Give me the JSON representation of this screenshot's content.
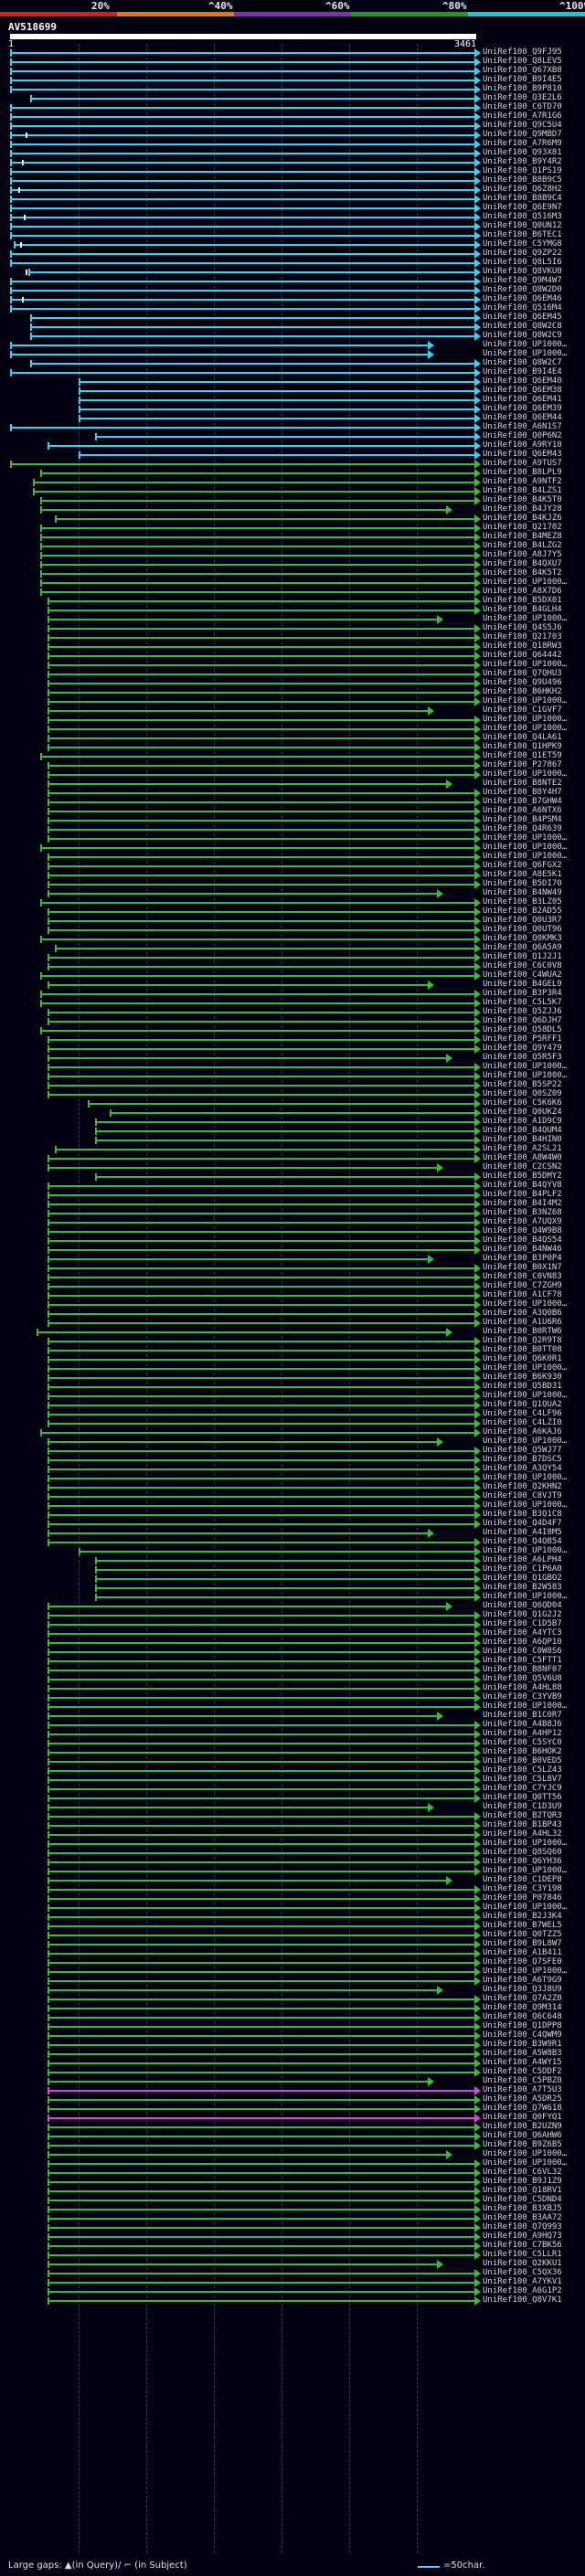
{
  "scale": {
    "labels": [
      "20%",
      "^40%",
      "^60%",
      "^80%",
      "^100%"
    ],
    "colors": [
      "#dd1a22",
      "#e07810",
      "#8030b0",
      "#18a018",
      "#18c8d8"
    ]
  },
  "query": {
    "id": "AV518699",
    "start": "1",
    "end": "3461"
  },
  "colors": {
    "blast_cyan": "#3ad0f0",
    "blast_green": "#3cb83c",
    "blast_magenta": "#e040e0"
  },
  "legend": {
    "gap_text": "Large gaps: ▲(in Query)/ ⌐ (in Subject)",
    "scale_text": "=50char."
  },
  "hits": [
    "UniRef100_Q9FJ95",
    "UniRef100_Q8LEV5",
    "UniRef100_Q67XB8",
    "UniRef100_B9I4E5",
    "UniRef100_B9P810",
    "UniRef100_Q3E2L6",
    "UniRef100_C6TD70",
    "UniRef100_A7R1G6",
    "UniRef100_Q9C5U4",
    "UniRef100_Q9MBD7",
    "UniRef100_A7R6M9",
    "UniRef100_Q93X81",
    "UniRef100_B9Y4R2",
    "UniRef100_Q1PS19",
    "UniRef100_B8B9C5",
    "UniRef100_Q6Z8H2",
    "UniRef100_B8B9C4",
    "UniRef100_Q6E9N7",
    "UniRef100_Q516M3",
    "UniRef100_Q0UN12",
    "UniRef100_B6TEC1",
    "UniRef100_C5YMG8",
    "UniRef100_Q9ZP22",
    "UniRef100_Q8L5I6",
    "UniRef100_Q8VKU0",
    "UniRef100_Q9M4W7",
    "UniRef100_Q8W2D0",
    "UniRef100_Q6EM46",
    "UniRef100_Q516M4",
    "UniRef100_Q6EM45",
    "UniRef100_Q8W2C8",
    "UniRef100_Q8W2C9",
    "UniRef100_UP1000…",
    "UniRef100_UP1000…",
    "UniRef100_Q8W2C7",
    "UniRef100_B9I4E4",
    "UniRef100_Q6EM40",
    "UniRef100_Q6EM38",
    "UniRef100_Q6EM41",
    "UniRef100_Q6EM39",
    "UniRef100_Q6EM44",
    "UniRef100_A6N1S7",
    "UniRef100_Q0P6N2",
    "UniRef100_A9RY10",
    "UniRef100_Q6EM43",
    "UniRef100_A9TUS7",
    "UniRef100_B8LPL9",
    "UniRef100_A9NTF2",
    "UniRef100_B4LZS1",
    "UniRef100_B4K5T0",
    "UniRef100_B4JY28",
    "UniRef100_B4KJZ6",
    "UniRef100_Q21702",
    "UniRef100_B4MEZ8",
    "UniRef100_B4LZG2",
    "UniRef100_A8J7Y5",
    "UniRef100_B4QXU7",
    "UniRef100_B4K5T2",
    "UniRef100_UP1000…",
    "UniRef100_A8X7D6",
    "UniRef100_B5DX01",
    "UniRef100_B4GLH4",
    "UniRef100_UP1000…",
    "UniRef100_Q4S5J6",
    "UniRef100_Q21703",
    "UniRef100_Q18RW3",
    "UniRef100_Q64442",
    "UniRef100_UP1000…",
    "UniRef100_Q7QHU3",
    "UniRef100_Q9U496",
    "UniRef100_B6HKH2",
    "UniRef100_UP1000…",
    "UniRef100_C1GVF7",
    "UniRef100_UP1000…",
    "UniRef100_UP1000…",
    "UniRef100_Q4LA61",
    "UniRef100_Q1HPK9",
    "UniRef100_Q1ET59",
    "UniRef100_P27867",
    "UniRef100_UP1000…",
    "UniRef100_B8NTE2",
    "UniRef100_B8Y4H7",
    "UniRef100_B7GHW4",
    "UniRef100_A6NTX6",
    "UniRef100_B4PSM4",
    "UniRef100_Q4R639",
    "UniRef100_UP1000…",
    "UniRef100_UP1000…",
    "UniRef100_UP1000…",
    "UniRef100_Q6FGX2",
    "UniRef100_A8E5K1",
    "UniRef100_B5DI70",
    "UniRef100_B4NW49",
    "UniRef100_B3LZ05",
    "UniRef100_B2AD55",
    "UniRef100_Q0U3R7",
    "UniRef100_Q0UT96",
    "UniRef100_Q0KMK3",
    "UniRef100_Q6A5A9",
    "UniRef100_Q1J2J1",
    "UniRef100_C6C0V8",
    "UniRef100_C4WUA2",
    "UniRef100_B4GEL9",
    "UniRef100_B3P3R4",
    "UniRef100_C5L5K7",
    "UniRef100_Q5ZJJ6",
    "UniRef100_Q6DJH7",
    "UniRef100_Q58DL5",
    "UniRef100_P5RFF1",
    "UniRef100_Q9Y479",
    "UniRef100_Q5R5F3",
    "UniRef100_UP1000…",
    "UniRef100_UP1000…",
    "UniRef100_B5SP22",
    "UniRef100_Q0SZ09",
    "UniRef100_C5K6K6",
    "UniRef100_Q0UKZ4",
    "UniRef100_A1D9C9",
    "UniRef100_B4QUM4",
    "UniRef100_B4HIN0",
    "UniRef100_A2SL21",
    "UniRef100_A8W4W0",
    "UniRef100_C2CSN2",
    "UniRef100_B5DMY2",
    "UniRef100_B4QYV8",
    "UniRef100_B4PLF2",
    "UniRef100_B4I4M2",
    "UniRef100_B3NZ68",
    "UniRef100_A7UQX9",
    "UniRef100_Q4W9B8",
    "UniRef100_B4QS54",
    "UniRef100_B4NW46",
    "UniRef100_B3P0P4",
    "UniRef100_B0X1N7",
    "UniRef100_C0VN83",
    "UniRef100_C7ZGH9",
    "UniRef100_A1CF78",
    "UniRef100_UP1000…",
    "UniRef100_A3Q0B6",
    "UniRef100_A1U6R6",
    "UniRef100_B0RTW6",
    "UniRef100_Q2R9T8",
    "UniRef100_B0TT08",
    "UniRef100_Q6K0R1",
    "UniRef100_UP1000…",
    "UniRef100_B6K930",
    "UniRef100_Q5BD31",
    "UniRef100_UP1000…",
    "UniRef100_Q1QUA2",
    "UniRef100_C4LF96",
    "UniRef100_C4LZI0",
    "UniRef100_A6KAJ6",
    "UniRef100_UP1000…",
    "UniRef100_Q5WJ77",
    "UniRef100_B7DSC5",
    "UniRef100_A3QY54",
    "UniRef100_UP1000…",
    "UniRef100_Q2KHN2",
    "UniRef100_C8VJT9",
    "UniRef100_UP1000…",
    "UniRef100_B3Q1C8",
    "UniRef100_Q4D4F7",
    "UniRef100_A4I8M5",
    "UniRef100_Q4QB54",
    "UniRef100_UP1000…",
    "UniRef100_A6LPH4",
    "UniRef100_C1P6A0",
    "UniRef100_Q1GBO2",
    "UniRef100_B2W583",
    "UniRef100_UP1000…",
    "UniRef100_Q6QD04",
    "UniRef100_Q1G2J2",
    "UniRef100_C1D5B7",
    "UniRef100_A4YTC3",
    "UniRef100_A6QP10",
    "UniRef100_C0W8S6",
    "UniRef100_C5FTT1",
    "UniRef100_B8NF07",
    "UniRef100_Q5V6U8",
    "UniRef100_A4HL88",
    "UniRef100_C3YVB9",
    "UniRef100_UP1000…",
    "UniRef100_B1C0R7",
    "UniRef100_A4B8J6",
    "UniRef100_A4HP12",
    "UniRef100_C5SYC0",
    "UniRef100_B6HOK2",
    "UniRef100_B0VED5",
    "UniRef100_C5LZ43",
    "UniRef100_C5L8V7",
    "UniRef100_C7YJC9",
    "UniRef100_Q0TT56",
    "UniRef100_C1D3U9",
    "UniRef100_B2TQR3",
    "UniRef100_B1BP43",
    "UniRef100_A4HL32",
    "UniRef100_UP1000…",
    "UniRef100_Q8SQ60",
    "UniRef100_Q6YH36",
    "UniRef100_UP1000…",
    "UniRef100_C1DEP8",
    "UniRef100_C3Y198",
    "UniRef100_P07846",
    "UniRef100_UP1000…",
    "UniRef100_B2J3K4",
    "UniRef100_B7WEL5",
    "UniRef100_Q0TZZ5",
    "UniRef100_B9L8W7",
    "UniRef100_A1B411",
    "UniRef100_Q7SFE0",
    "UniRef100_UP1000…",
    "UniRef100_A6T9G9",
    "UniRef100_Q3J8U9",
    "UniRef100_Q7A2Z0",
    "UniRef100_Q9M314",
    "UniRef100_Q6C648",
    "UniRef100_Q1DPP8",
    "UniRef100_C4QWM9",
    "UniRef100_B3W9R1",
    "UniRef100_A5W8B3",
    "UniRef100_A4WY15",
    "UniRef100_C5DDF2",
    "UniRef100_C5PBZ0",
    "UniRef100_A7T5U3",
    "UniRef100_A5DR25",
    "UniRef100_Q7W618",
    "UniRef100_Q0FYQ1",
    "UniRef100_B2UZN9",
    "UniRef100_Q6AHW6",
    "UniRef100_B9Z6B5",
    "UniRef100_UP1000…",
    "UniRef100_UP1000…",
    "UniRef100_C6VL32",
    "UniRef100_B9J1Z9",
    "UniRef100_Q18RV1",
    "UniRef100_C5DND4",
    "UniRef100_B3XBJ5",
    "UniRef100_B3AA72",
    "UniRef100_Q7Q993",
    "UniRef100_A9HQ73",
    "UniRef100_C7BK56",
    "UniRef100_C5LLR1",
    "UniRef100_Q2KKU1",
    "UniRef100_C5QX36",
    "UniRef100_A7YKV1",
    "UniRef100_A6G1P2",
    "UniRef100_Q8V7K1"
  ]
}
